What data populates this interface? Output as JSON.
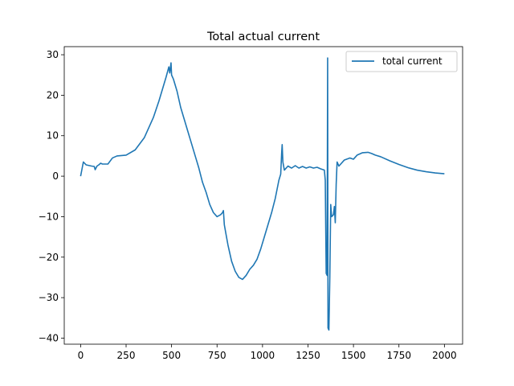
{
  "chart_data": {
    "type": "line",
    "title": "Total actual current",
    "xlabel": "",
    "ylabel": "",
    "xlim": [
      -90,
      2100
    ],
    "ylim": [
      -41.5,
      32
    ],
    "xticks": [
      0,
      250,
      500,
      750,
      1000,
      1250,
      1500,
      1750,
      2000
    ],
    "yticks": [
      -40,
      -30,
      -20,
      -10,
      0,
      10,
      20,
      30
    ],
    "grid": false,
    "legend_placement": "top-right",
    "series": [
      {
        "name": "total current",
        "color": "#1f77b4",
        "points": [
          [
            0,
            0
          ],
          [
            15,
            3.5
          ],
          [
            30,
            2.8
          ],
          [
            60,
            2.5
          ],
          [
            75,
            2.4
          ],
          [
            80,
            1.6
          ],
          [
            90,
            2.5
          ],
          [
            100,
            2.8
          ],
          [
            110,
            3.2
          ],
          [
            120,
            3.0
          ],
          [
            150,
            3.0
          ],
          [
            175,
            4.5
          ],
          [
            200,
            5.0
          ],
          [
            250,
            5.2
          ],
          [
            300,
            6.5
          ],
          [
            350,
            9.5
          ],
          [
            400,
            14.5
          ],
          [
            430,
            18.5
          ],
          [
            450,
            21.5
          ],
          [
            470,
            24.5
          ],
          [
            485,
            27.0
          ],
          [
            490,
            25.5
          ],
          [
            497,
            28.0
          ],
          [
            500,
            25.0
          ],
          [
            510,
            24.0
          ],
          [
            530,
            21.0
          ],
          [
            550,
            17.0
          ],
          [
            570,
            14.0
          ],
          [
            590,
            11.0
          ],
          [
            610,
            8.0
          ],
          [
            630,
            5.0
          ],
          [
            650,
            2.0
          ],
          [
            670,
            -1.5
          ],
          [
            690,
            -4.0
          ],
          [
            710,
            -7.0
          ],
          [
            730,
            -9.0
          ],
          [
            750,
            -10.0
          ],
          [
            770,
            -9.5
          ],
          [
            780,
            -9.0
          ],
          [
            785,
            -8.5
          ],
          [
            790,
            -12.0
          ],
          [
            800,
            -14.5
          ],
          [
            810,
            -17.0
          ],
          [
            830,
            -21.0
          ],
          [
            850,
            -23.5
          ],
          [
            870,
            -25.0
          ],
          [
            890,
            -25.5
          ],
          [
            910,
            -24.5
          ],
          [
            930,
            -23.0
          ],
          [
            950,
            -22.0
          ],
          [
            970,
            -20.5
          ],
          [
            990,
            -18.0
          ],
          [
            1010,
            -15.0
          ],
          [
            1030,
            -12.0
          ],
          [
            1050,
            -9.0
          ],
          [
            1070,
            -5.5
          ],
          [
            1090,
            -1.0
          ],
          [
            1100,
            0.5
          ],
          [
            1105,
            5.5
          ],
          [
            1108,
            7.8
          ],
          [
            1112,
            3.5
          ],
          [
            1120,
            1.5
          ],
          [
            1140,
            2.5
          ],
          [
            1160,
            2.0
          ],
          [
            1180,
            2.6
          ],
          [
            1200,
            2.0
          ],
          [
            1220,
            2.4
          ],
          [
            1240,
            2.0
          ],
          [
            1260,
            2.3
          ],
          [
            1280,
            2.0
          ],
          [
            1300,
            2.2
          ],
          [
            1320,
            1.8
          ],
          [
            1340,
            1.5
          ],
          [
            1345,
            -1.0
          ],
          [
            1350,
            -24.0
          ],
          [
            1355,
            -24.5
          ],
          [
            1358,
            29.2
          ],
          [
            1360,
            -37.5
          ],
          [
            1365,
            -38.0
          ],
          [
            1370,
            -25.0
          ],
          [
            1375,
            -7.0
          ],
          [
            1380,
            -10.0
          ],
          [
            1390,
            -9.5
          ],
          [
            1395,
            -7.5
          ],
          [
            1400,
            -11.5
          ],
          [
            1405,
            -2.0
          ],
          [
            1410,
            3.5
          ],
          [
            1420,
            2.5
          ],
          [
            1450,
            4.0
          ],
          [
            1480,
            4.5
          ],
          [
            1500,
            4.2
          ],
          [
            1520,
            5.2
          ],
          [
            1550,
            5.8
          ],
          [
            1580,
            5.9
          ],
          [
            1600,
            5.6
          ],
          [
            1620,
            5.2
          ],
          [
            1650,
            4.8
          ],
          [
            1700,
            3.8
          ],
          [
            1750,
            2.9
          ],
          [
            1800,
            2.1
          ],
          [
            1850,
            1.5
          ],
          [
            1900,
            1.1
          ],
          [
            1950,
            0.8
          ],
          [
            2000,
            0.6
          ]
        ]
      }
    ]
  }
}
